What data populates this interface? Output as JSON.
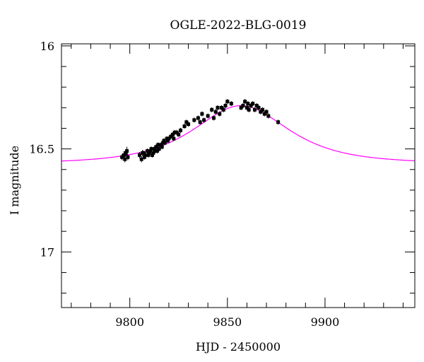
{
  "chart_data": {
    "type": "scatter",
    "title": "OGLE-2022-BLG-0019",
    "xlabel": "HJD - 2450000",
    "ylabel": "I magnitude",
    "xlim": [
      9765,
      9946
    ],
    "ylim": [
      17.27,
      15.99
    ],
    "y_inverted": true,
    "grid": false,
    "xticks": [
      9800,
      9850,
      9900
    ],
    "yticks": [
      16,
      16.5,
      17
    ],
    "x_minor_step": 10,
    "y_minor_step": 0.1,
    "model": {
      "color": "#ff00ff",
      "baseline_mag": 16.57,
      "peak_mag": 16.29,
      "t0": 9857,
      "tE": 28
    },
    "series": [
      {
        "color": "#000000",
        "x": [
          9796,
          9797,
          9797.5,
          9798,
          9798.5,
          9799,
          9805,
          9806,
          9806.5,
          9807,
          9807.5,
          9808,
          9809,
          9809.5,
          9810,
          9810.5,
          9811,
          9811.5,
          9812,
          9812.5,
          9813,
          9813.5,
          9814,
          9814.5,
          9815,
          9816,
          9816.5,
          9817,
          9817.5,
          9818,
          9819,
          9819.5,
          9820,
          9821,
          9822,
          9822.5,
          9823,
          9824,
          9825,
          9826,
          9828,
          9829,
          9830,
          9833,
          9835,
          9836,
          9837,
          9838,
          9840,
          9842,
          9843,
          9844,
          9845,
          9846,
          9847,
          9848,
          9849,
          9850,
          9852,
          9857,
          9858,
          9859,
          9860,
          9860.5,
          9861,
          9862,
          9863,
          9864,
          9865,
          9866,
          9867,
          9868,
          9869,
          9870,
          9871,
          9876
        ],
        "y": [
          16.54,
          16.53,
          16.55,
          16.52,
          16.51,
          16.54,
          16.53,
          16.55,
          16.52,
          16.52,
          16.54,
          16.53,
          16.51,
          16.53,
          16.52,
          16.51,
          16.5,
          16.53,
          16.52,
          16.5,
          16.51,
          16.49,
          16.51,
          16.48,
          16.5,
          16.48,
          16.49,
          16.47,
          16.46,
          16.47,
          16.45,
          16.46,
          16.45,
          16.44,
          16.43,
          16.45,
          16.42,
          16.42,
          16.43,
          16.41,
          16.39,
          16.37,
          16.38,
          16.36,
          16.35,
          16.37,
          16.33,
          16.36,
          16.34,
          16.31,
          16.35,
          16.32,
          16.3,
          16.33,
          16.3,
          16.31,
          16.29,
          16.27,
          16.28,
          16.3,
          16.29,
          16.27,
          16.3,
          16.28,
          16.31,
          16.29,
          16.28,
          16.31,
          16.29,
          16.3,
          16.32,
          16.31,
          16.33,
          16.32,
          16.34,
          16.37
        ],
        "err": [
          0.015,
          0.02,
          0.015,
          0.015,
          0.02,
          0.015,
          0.015,
          0.015,
          0.015,
          0.012,
          0.012,
          0.015,
          0.012,
          0.012,
          0.012,
          0.012,
          0.012,
          0.012,
          0.012,
          0.012,
          0.012,
          0.012,
          0.012,
          0.012,
          0.012,
          0.012,
          0.012,
          0.012,
          0.012,
          0.012,
          0.012,
          0.012,
          0.012,
          0.012,
          0.012,
          0.012,
          0.012,
          0.012,
          0.012,
          0.012,
          0.012,
          0.012,
          0.012,
          0.012,
          0.012,
          0.012,
          0.012,
          0.012,
          0.012,
          0.012,
          0.012,
          0.012,
          0.012,
          0.012,
          0.012,
          0.012,
          0.012,
          0.012,
          0.012,
          0.012,
          0.012,
          0.012,
          0.012,
          0.012,
          0.012,
          0.012,
          0.012,
          0.012,
          0.012,
          0.012,
          0.012,
          0.012,
          0.012,
          0.012,
          0.012,
          0.012
        ]
      }
    ]
  }
}
